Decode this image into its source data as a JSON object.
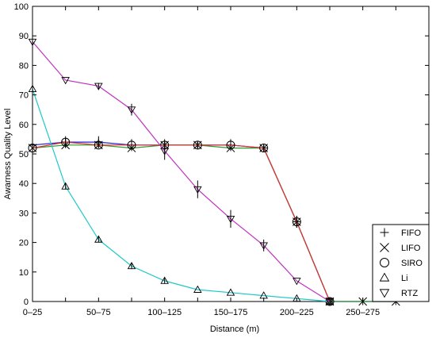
{
  "chart_data": {
    "type": "line",
    "xlabel": "Distance (m)",
    "ylabel": "Awarness Quality Level",
    "ylim": [
      0,
      100
    ],
    "yticks": [
      0,
      10,
      20,
      30,
      40,
      50,
      60,
      70,
      80,
      90,
      100
    ],
    "xlim": [
      0,
      12
    ],
    "xtick_labels": [
      "0–25",
      "50–75",
      "100–125",
      "150–175",
      "200–225",
      "250–275"
    ],
    "xtick_positions": [
      0,
      2,
      4,
      6,
      8,
      10
    ],
    "legend_position": "bottom-right",
    "series": [
      {
        "name": "FIFO",
        "marker": "plus",
        "color": "#1f1fd6",
        "x": [
          0,
          1,
          2,
          3,
          4,
          5,
          6,
          7,
          8,
          9,
          10,
          11
        ],
        "y": [
          53,
          54,
          54,
          53,
          53,
          53,
          53,
          52,
          27,
          0,
          0,
          0
        ],
        "err": [
          1,
          2,
          2,
          2,
          2,
          1,
          2,
          1,
          2,
          0,
          0,
          0
        ]
      },
      {
        "name": "LIFO",
        "marker": "x",
        "color": "#2a9a2a",
        "x": [
          0,
          1,
          2,
          3,
          4,
          5,
          6,
          7,
          8,
          9,
          10,
          11
        ],
        "y": [
          52,
          53,
          53,
          52,
          53,
          53,
          52,
          52,
          27,
          0,
          0,
          0
        ],
        "err": [
          1,
          1,
          1,
          1,
          1,
          1,
          1,
          1,
          2,
          0,
          0,
          0
        ]
      },
      {
        "name": "SIRO",
        "marker": "circle",
        "color": "#e03030",
        "x": [
          0,
          1,
          2,
          3,
          4,
          5,
          6,
          7,
          8,
          9
        ],
        "y": [
          52,
          54,
          53,
          53,
          53,
          53,
          53,
          52,
          27,
          0
        ],
        "err": [
          1,
          1,
          1,
          1,
          1,
          1,
          1,
          1,
          1,
          0
        ]
      },
      {
        "name": "Li",
        "marker": "triangle-up",
        "color": "#1fc8c8",
        "x": [
          0,
          1,
          2,
          3,
          4,
          5,
          6,
          7,
          8,
          9
        ],
        "y": [
          72,
          39,
          21,
          12,
          7,
          4,
          3,
          2,
          1,
          0
        ],
        "err": [
          1,
          1,
          1,
          1,
          1,
          0,
          0,
          0,
          0,
          0
        ]
      },
      {
        "name": "RTZ",
        "marker": "triangle-down",
        "color": "#c030c0",
        "x": [
          0,
          1,
          2,
          3,
          4,
          5,
          6,
          7,
          8,
          9
        ],
        "y": [
          88,
          75,
          73,
          65,
          51,
          38,
          28,
          19,
          7,
          0
        ],
        "err": [
          1,
          0,
          1,
          2,
          3,
          3,
          3,
          2,
          0,
          0
        ]
      }
    ]
  }
}
